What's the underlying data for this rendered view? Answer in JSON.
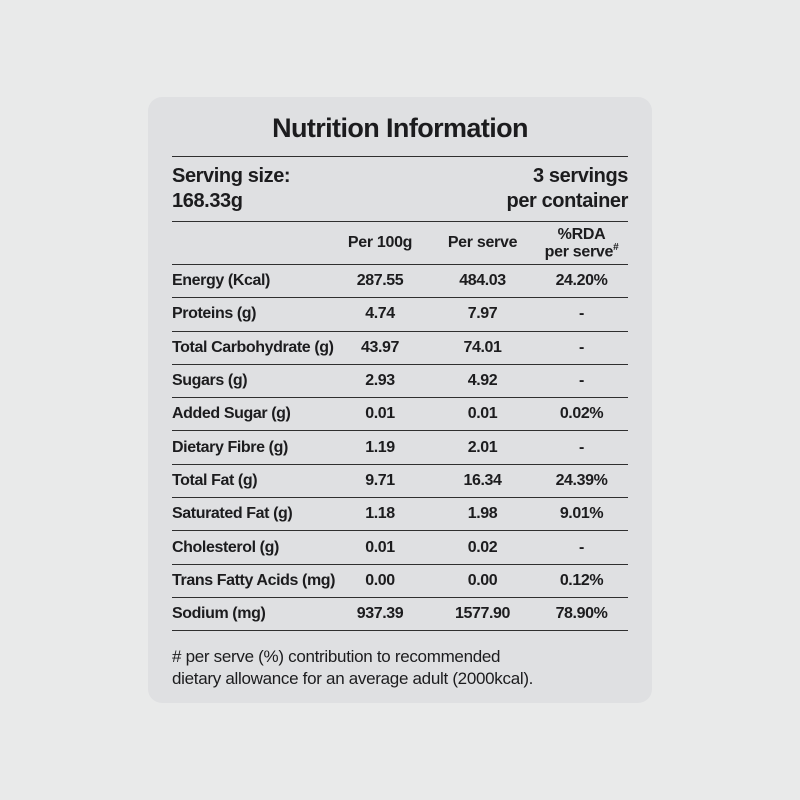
{
  "page": {
    "background": "#e9eaea"
  },
  "card": {
    "background": "#dfe0e2",
    "title": "Nutrition Information"
  },
  "serving": {
    "size_label": "Serving size:",
    "size_value": "168.33g",
    "count_line1": "3 servings",
    "count_line2": "per container"
  },
  "table": {
    "header_per_100g": "Per 100g",
    "header_per_serve": "Per serve",
    "header_rda_line1": "%RDA",
    "header_rda_line2": "per serve",
    "header_rda_sup": "#",
    "rows": [
      {
        "label": "Energy (Kcal)",
        "per_100g": "287.55",
        "per_serve": "484.03",
        "rda": "24.20%"
      },
      {
        "label": "Proteins (g)",
        "per_100g": "4.74",
        "per_serve": "7.97",
        "rda": "-"
      },
      {
        "label": "Total Carbohydrate (g)",
        "per_100g": "43.97",
        "per_serve": "74.01",
        "rda": "-"
      },
      {
        "label": "Sugars (g)",
        "per_100g": "2.93",
        "per_serve": "4.92",
        "rda": "-"
      },
      {
        "label": "Added Sugar (g)",
        "per_100g": "0.01",
        "per_serve": "0.01",
        "rda": "0.02%"
      },
      {
        "label": "Dietary Fibre (g)",
        "per_100g": "1.19",
        "per_serve": "2.01",
        "rda": "-"
      },
      {
        "label": "Total Fat (g)",
        "per_100g": "9.71",
        "per_serve": "16.34",
        "rda": "24.39%"
      },
      {
        "label": "Saturated Fat (g)",
        "per_100g": "1.18",
        "per_serve": "1.98",
        "rda": "9.01%"
      },
      {
        "label": "Cholesterol (g)",
        "per_100g": "0.01",
        "per_serve": "0.02",
        "rda": "-"
      },
      {
        "label": "Trans Fatty Acids (mg)",
        "per_100g": "0.00",
        "per_serve": "0.00",
        "rda": "0.12%"
      },
      {
        "label": "Sodium (mg)",
        "per_100g": "937.39",
        "per_serve": "1577.90",
        "rda": "78.90%"
      }
    ]
  },
  "footnote": {
    "line1": "# per serve (%) contribution to recommended",
    "line2": "dietary allowance for an average adult (2000kcal)."
  }
}
